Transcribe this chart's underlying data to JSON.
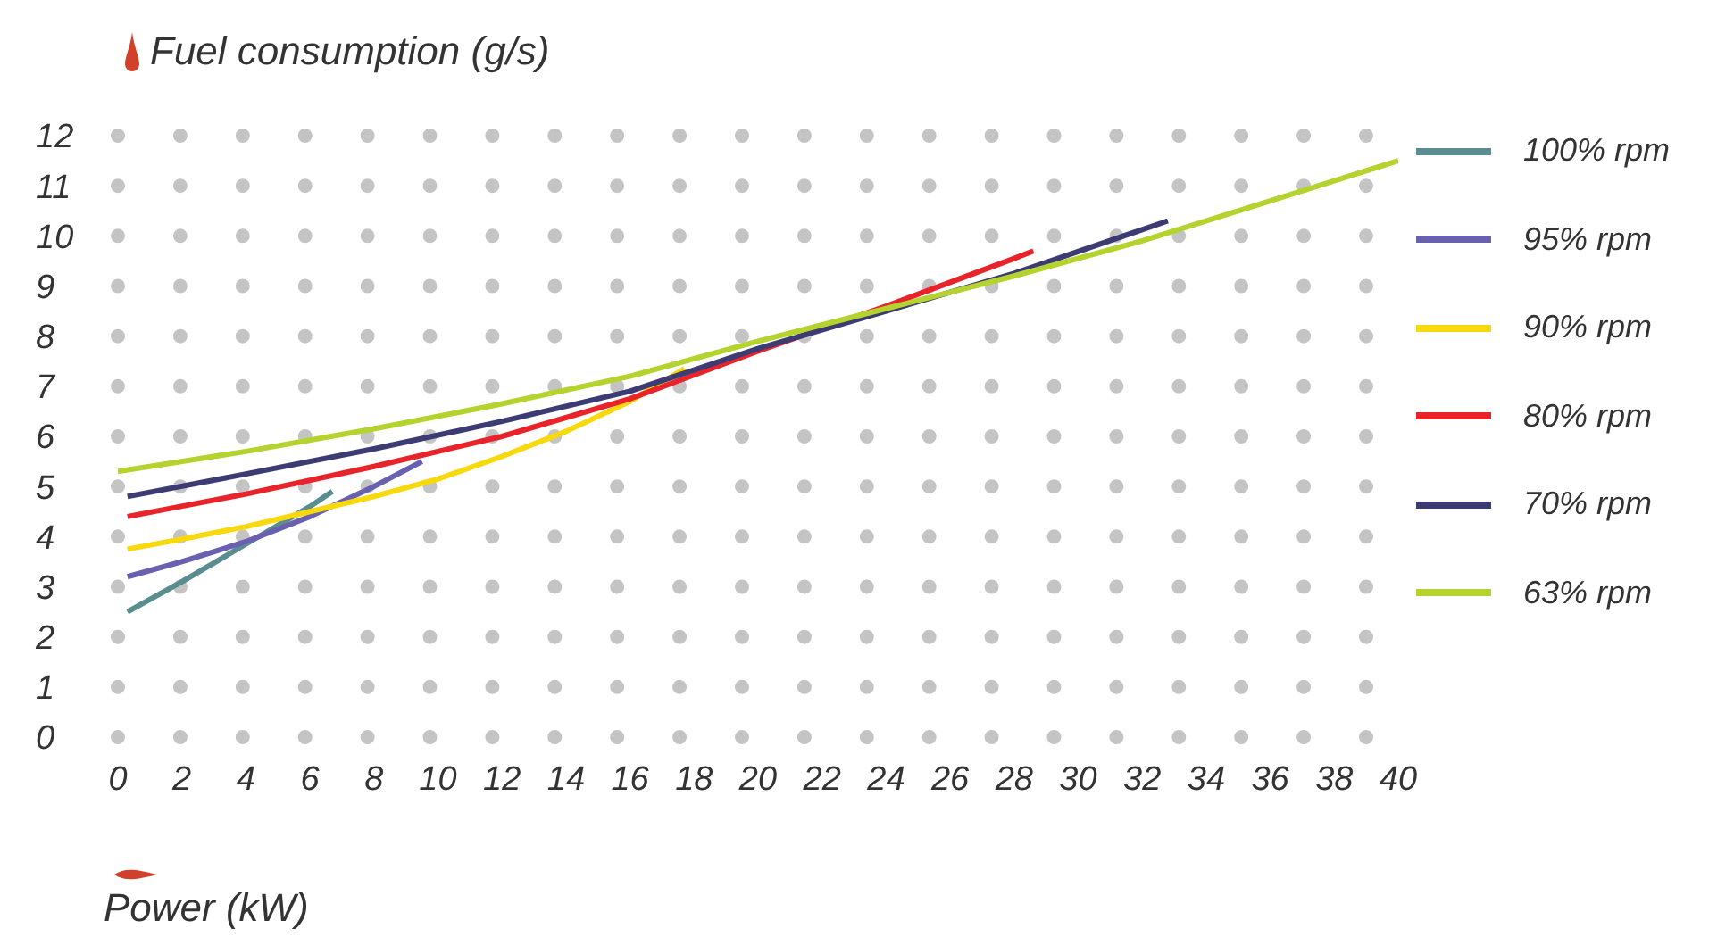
{
  "chart_data": {
    "type": "line",
    "xlabel": "Power (kW)",
    "ylabel": "Fuel consumption (g/s)",
    "xlim": [
      0,
      40
    ],
    "ylim": [
      0,
      12
    ],
    "xticks": [
      0,
      2,
      4,
      6,
      8,
      10,
      12,
      14,
      16,
      18,
      20,
      22,
      24,
      26,
      28,
      30,
      32,
      34,
      36,
      38,
      40
    ],
    "yticks": [
      0,
      1,
      2,
      3,
      4,
      5,
      6,
      7,
      8,
      9,
      10,
      11,
      12
    ],
    "grid": "y",
    "legend": "right",
    "marker": "none",
    "line_style": "solid",
    "series": [
      {
        "name": "100% rpm",
        "color": "#5a8d8f",
        "x": [
          0.3,
          2,
          4,
          6,
          6.7
        ],
        "values": [
          2.5,
          3.1,
          3.85,
          4.6,
          4.9
        ]
      },
      {
        "name": "95% rpm",
        "color": "#6a60b0",
        "x": [
          0.3,
          2,
          4,
          6,
          8,
          9.5
        ],
        "values": [
          3.2,
          3.5,
          3.9,
          4.4,
          5.0,
          5.5
        ]
      },
      {
        "name": "90% rpm",
        "color": "#f7d90e",
        "x": [
          0.3,
          2,
          4,
          6,
          8,
          10,
          12,
          14,
          16,
          17.7
        ],
        "values": [
          3.75,
          3.95,
          4.2,
          4.5,
          4.8,
          5.15,
          5.6,
          6.1,
          6.7,
          7.35
        ]
      },
      {
        "name": "80% rpm",
        "color": "#e8232a",
        "x": [
          0.3,
          4,
          8,
          12,
          16,
          20,
          24,
          28,
          28.6
        ],
        "values": [
          4.4,
          4.85,
          5.4,
          6.0,
          6.75,
          7.7,
          8.6,
          9.55,
          9.7
        ]
      },
      {
        "name": "70% rpm",
        "color": "#3d3b73",
        "x": [
          0.3,
          4,
          8,
          12,
          16,
          20,
          24,
          28,
          32.8
        ],
        "values": [
          4.8,
          5.25,
          5.75,
          6.3,
          6.9,
          7.75,
          8.5,
          9.25,
          10.3
        ]
      },
      {
        "name": "63% rpm",
        "color": "#b5d32e",
        "x": [
          0,
          4,
          8,
          12,
          16,
          20,
          24,
          28,
          32,
          36,
          40
        ],
        "values": [
          5.3,
          5.7,
          6.15,
          6.65,
          7.2,
          7.9,
          8.55,
          9.2,
          9.9,
          10.7,
          11.5
        ]
      }
    ]
  }
}
